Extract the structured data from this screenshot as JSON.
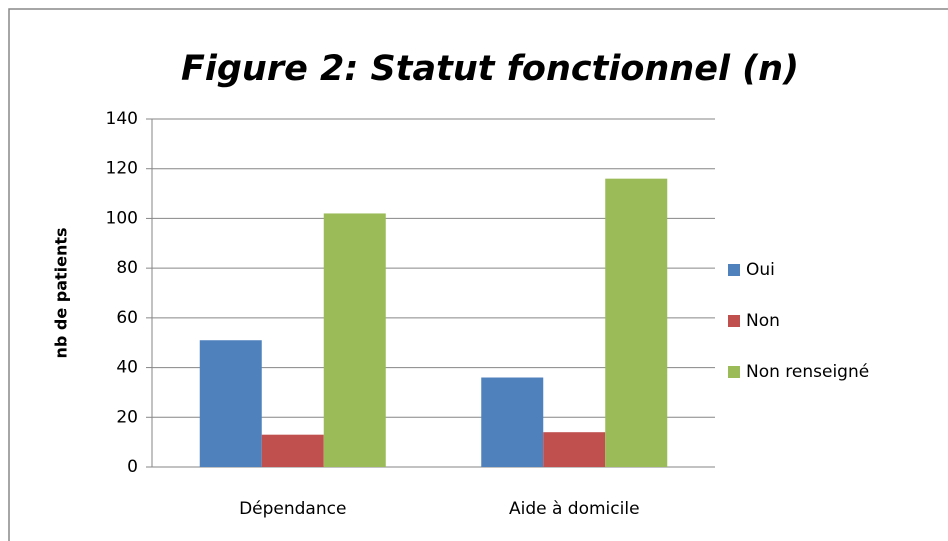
{
  "chart_data": {
    "type": "bar",
    "title": "Figure 2: Statut fonctionnel (n)",
    "y_label": "nb de patients",
    "categories": [
      "Dépendance",
      "Aide à domicile"
    ],
    "series": [
      {
        "name": "Oui",
        "color": "#4f81bd",
        "values": [
          51,
          36
        ]
      },
      {
        "name": "Non",
        "color": "#c0504d",
        "values": [
          13,
          14
        ]
      },
      {
        "name": "Non renseigné",
        "color": "#9bbb59",
        "values": [
          102,
          116
        ]
      }
    ],
    "ylim": [
      0,
      140
    ],
    "yticks": [
      0,
      20,
      40,
      60,
      80,
      100,
      120,
      140
    ],
    "grid": true,
    "legend": "right"
  }
}
